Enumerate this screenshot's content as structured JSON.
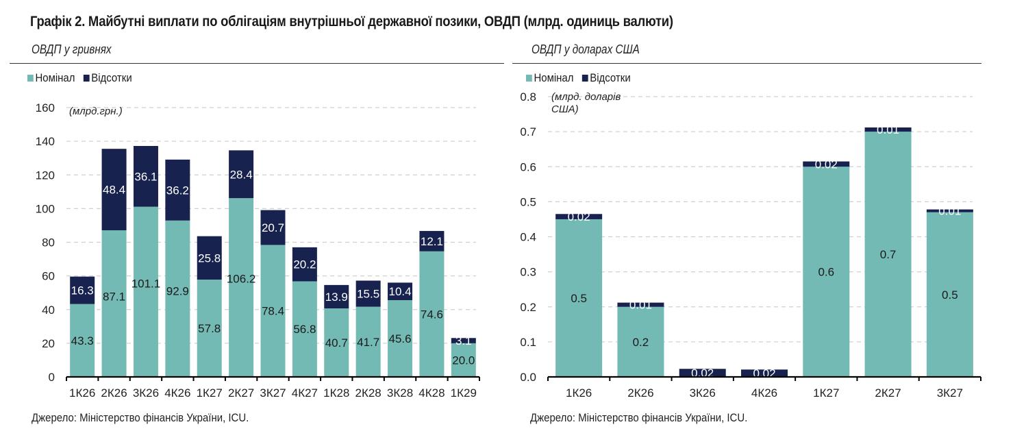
{
  "title": "Графік 2. Майбутні виплати по облігаціям внутрішньої державної позики, ОВДП (млрд. одиниць валюти)",
  "colors": {
    "nominal": "#73b9b4",
    "interest": "#18224f",
    "grid": "#d0d0d0",
    "axis": "#000000"
  },
  "chart_data": [
    {
      "type": "bar",
      "stacked": true,
      "subtitle": "ОВДП у гривнях",
      "unit_label": "(млрд.грн.)",
      "legend": [
        "Номінал",
        "Відсотки"
      ],
      "legend_position": "top-left",
      "categories": [
        "1К26",
        "2К26",
        "3К26",
        "4К26",
        "1К27",
        "2К27",
        "3К27",
        "4К27",
        "1К28",
        "2К28",
        "3К28",
        "4К28",
        "1К29"
      ],
      "series": [
        {
          "name": "Номінал",
          "values": [
            43.3,
            87.1,
            101.1,
            92.9,
            57.8,
            106.2,
            78.4,
            56.8,
            40.7,
            41.7,
            45.6,
            74.6,
            20.0
          ],
          "labels": [
            "43.3",
            "87.1",
            "101.1",
            "92.9",
            "57.8",
            "106.2",
            "78.4",
            "56.8",
            "40.7",
            "41.7",
            "45.6",
            "74.6",
            "20.0"
          ]
        },
        {
          "name": "Відсотки",
          "values": [
            16.3,
            48.4,
            36.1,
            36.2,
            25.8,
            28.4,
            20.7,
            20.2,
            13.9,
            15.5,
            10.4,
            12.1,
            3.1
          ],
          "labels": [
            "16.3",
            "48.4",
            "36.1",
            "36.2",
            "25.8",
            "28.4",
            "20.7",
            "20.2",
            "13.9",
            "15.5",
            "10.4",
            "12.1",
            "3.1"
          ]
        }
      ],
      "yticks": [
        0,
        20,
        40,
        60,
        80,
        100,
        120,
        140,
        160
      ],
      "ytick_labels": [
        "0",
        "20",
        "40",
        "60",
        "80",
        "100",
        "120",
        "140",
        "160"
      ],
      "ylim": [
        0,
        160
      ],
      "grid": true,
      "xlabel": "",
      "ylabel": "",
      "source": "Джерело: Міністерство фінансів України, ICU."
    },
    {
      "type": "bar",
      "stacked": true,
      "subtitle": "ОВДП у доларах США",
      "unit_label_lines": [
        "(млрд. доларів",
        "США)"
      ],
      "legend": [
        "Номінал",
        "Відсотки"
      ],
      "legend_position": "top-left",
      "categories": [
        "1К26",
        "2К26",
        "3К26",
        "4К26",
        "1К27",
        "2К27",
        "3К27"
      ],
      "series": [
        {
          "name": "Номінал",
          "values": [
            0.45,
            0.2,
            0.0,
            0.0,
            0.6,
            0.7,
            0.47
          ],
          "labels": [
            "0.5",
            "0.2",
            "",
            "",
            "0.6",
            "0.7",
            "0.5"
          ]
        },
        {
          "name": "Відсотки",
          "values": [
            0.015,
            0.012,
            0.023,
            0.021,
            0.015,
            0.012,
            0.008
          ],
          "labels": [
            "0.02",
            "0.01",
            "0.02",
            "0.02",
            "0.02",
            "0.01",
            "0.01"
          ]
        }
      ],
      "yticks": [
        0.0,
        0.1,
        0.2,
        0.3,
        0.4,
        0.5,
        0.6,
        0.7,
        0.8
      ],
      "ytick_labels": [
        "0.0",
        "0.1",
        "0.2",
        "0.3",
        "0.4",
        "0.5",
        "0.6",
        "0.7",
        "0.8"
      ],
      "ylim": [
        0,
        0.8
      ],
      "grid": true,
      "xlabel": "",
      "ylabel": "",
      "source": "Джерело: Міністерство фінансів України, ICU."
    }
  ]
}
